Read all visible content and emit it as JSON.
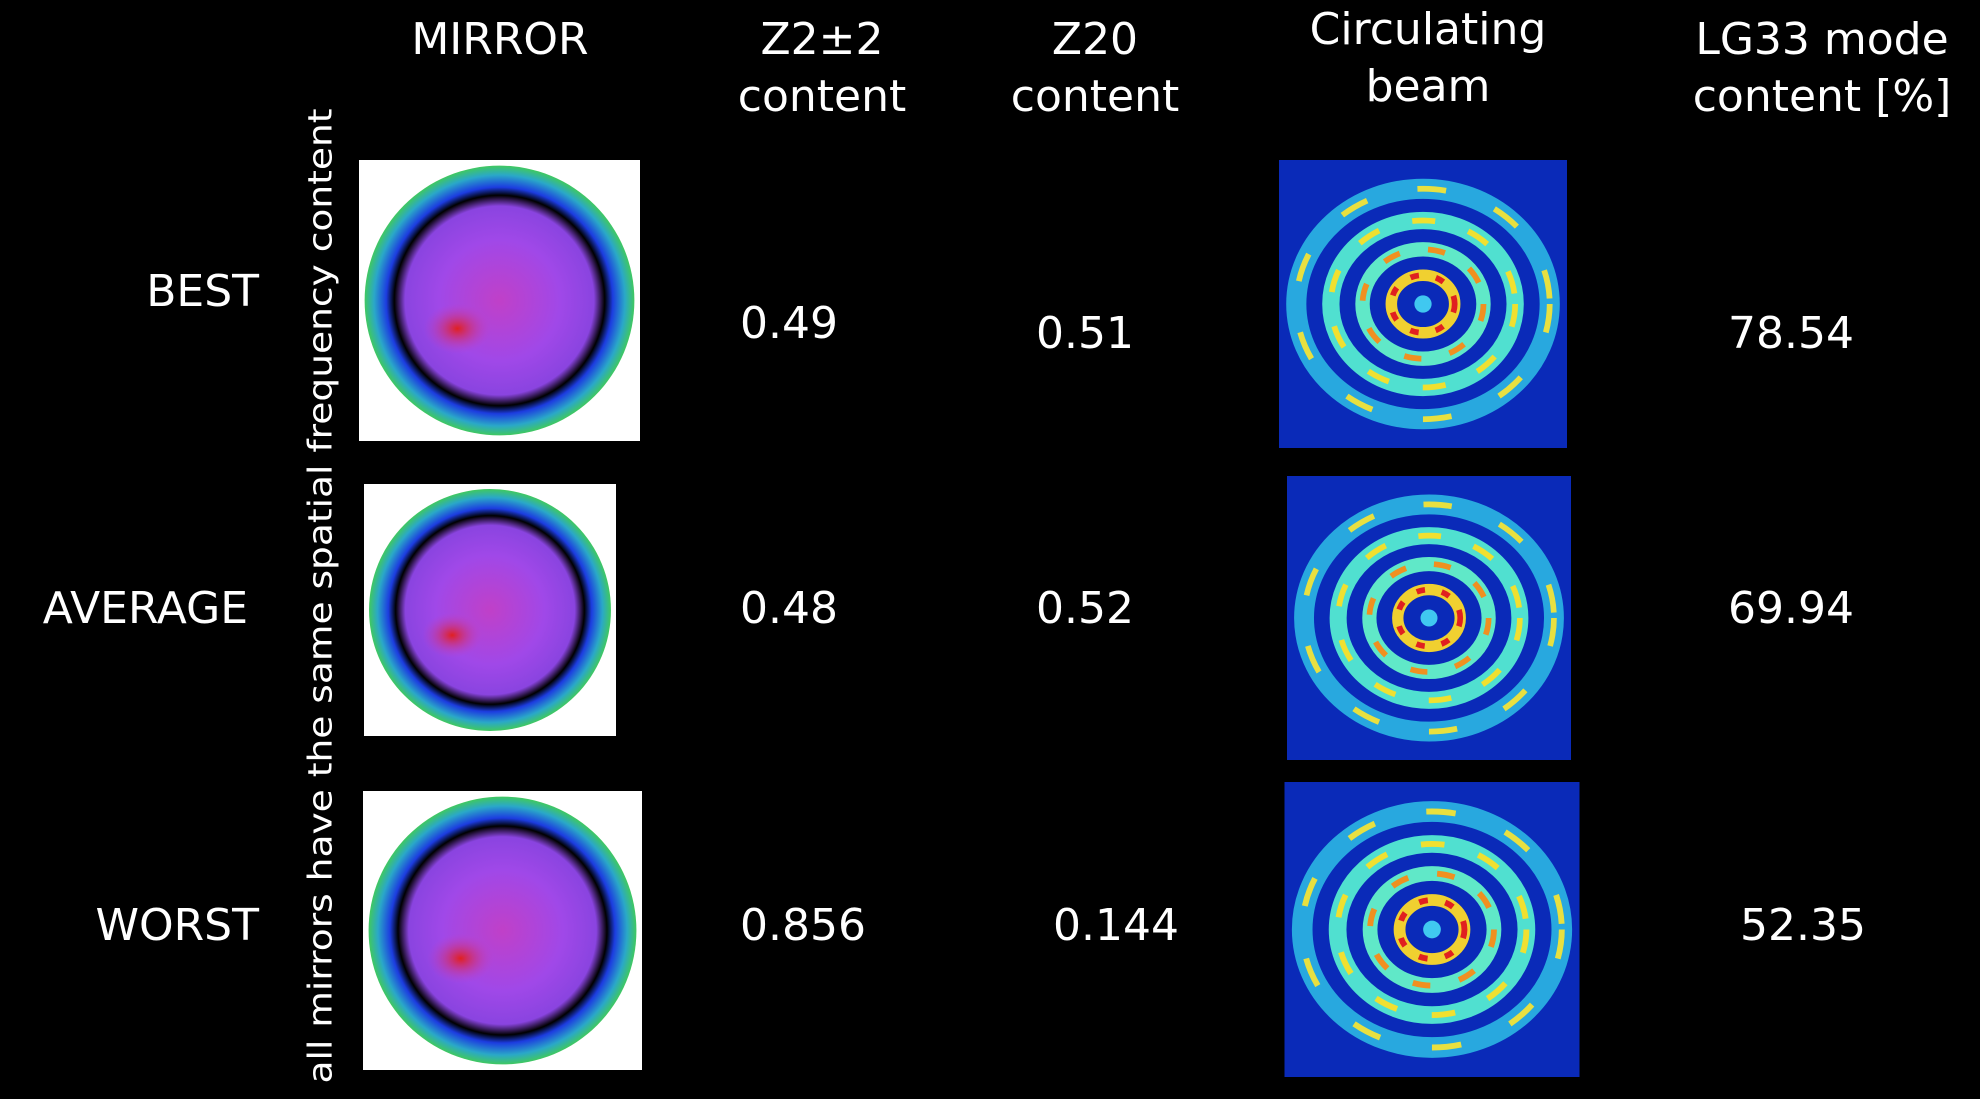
{
  "header": {
    "columns": [
      [
        "MIRROR"
      ],
      [
        "Z2±2",
        "content"
      ],
      [
        "Z20",
        "content"
      ],
      [
        "Circulating",
        "beam"
      ],
      [
        "LG33 mode",
        "content [%]"
      ]
    ]
  },
  "side_note": "all mirrors have the same spatial frequency content",
  "rows": [
    {
      "label": "BEST",
      "z22": "0.49",
      "z20": "0.51",
      "lg33": "78.54"
    },
    {
      "label": "AVERAGE",
      "z22": "0.48",
      "z20": "0.52",
      "lg33": "69.94"
    },
    {
      "label": "WORST",
      "z22": "0.856",
      "z20": "0.144",
      "lg33": "52.35"
    }
  ]
}
